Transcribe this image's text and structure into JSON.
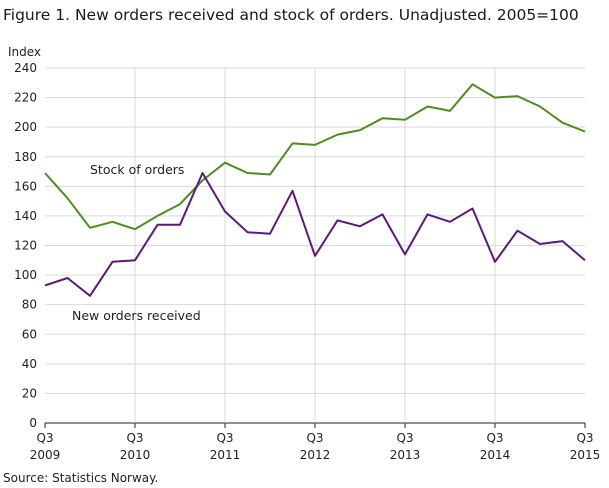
{
  "chart_data": {
    "type": "line",
    "title": "Figure 1. New orders received and stock of orders. Unadjusted. 2005=100",
    "ylabel": "Index",
    "ylim": [
      0,
      240
    ],
    "yticks": [
      0,
      20,
      40,
      60,
      80,
      100,
      120,
      140,
      160,
      180,
      200,
      220,
      240
    ],
    "x": [
      "2009Q3",
      "2009Q4",
      "2010Q1",
      "2010Q2",
      "2010Q3",
      "2010Q4",
      "2011Q1",
      "2011Q2",
      "2011Q3",
      "2011Q4",
      "2012Q1",
      "2012Q2",
      "2012Q3",
      "2012Q4",
      "2013Q1",
      "2013Q2",
      "2013Q3",
      "2013Q4",
      "2014Q1",
      "2014Q2",
      "2014Q3",
      "2014Q4",
      "2015Q1",
      "2015Q2",
      "2015Q3"
    ],
    "xtick_labels": [
      {
        "quarter": "Q3",
        "year": "2009"
      },
      {
        "quarter": "Q3",
        "year": "2010"
      },
      {
        "quarter": "Q3",
        "year": "2011"
      },
      {
        "quarter": "Q3",
        "year": "2012"
      },
      {
        "quarter": "Q3",
        "year": "2013"
      },
      {
        "quarter": "Q3",
        "year": "2014"
      },
      {
        "quarter": "Q3",
        "year": "2015"
      }
    ],
    "grid": true,
    "series": [
      {
        "name": "Stock of orders",
        "color": "#4d8c1e",
        "values": [
          169,
          152,
          132,
          136,
          131,
          140,
          148,
          164,
          176,
          169,
          168,
          189,
          188,
          195,
          198,
          206,
          205,
          214,
          211,
          229,
          220,
          221,
          214,
          203,
          197
        ]
      },
      {
        "name": "New orders received",
        "color": "#5b1a7a",
        "values": [
          93,
          98,
          86,
          109,
          110,
          134,
          134,
          169,
          143,
          129,
          128,
          157,
          113,
          137,
          133,
          141,
          114,
          141,
          136,
          145,
          109,
          130,
          121,
          123,
          110
        ]
      }
    ]
  },
  "source": "Source: Statistics Norway."
}
